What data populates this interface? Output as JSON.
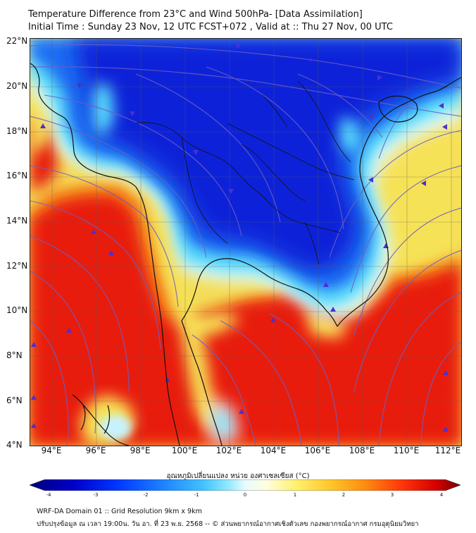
{
  "header": {
    "title_line1": "Temperature Difference from 23°C and Wind 500hPa- [Data Assimilation]",
    "title_line2": "Initial Time : Sunday 23 Nov, 12 UTC FCST+072 , Valid at ::  Thu 27 Nov, 00 UTC"
  },
  "map": {
    "lat_labels": [
      "22°N",
      "20°N",
      "18°N",
      "16°N",
      "14°N",
      "12°N",
      "10°N",
      "8°N",
      "6°N",
      "4°N"
    ],
    "lon_labels": [
      "94°E",
      "96°E",
      "98°E",
      "100°E",
      "102°E",
      "104°E",
      "106°E",
      "108°E",
      "110°E",
      "112°E"
    ],
    "lat_range": [
      4,
      22
    ],
    "lon_range": [
      93,
      112.5
    ],
    "field": "temperature difference from 23°C",
    "overlay": "500hPa wind streamlines",
    "colors": {
      "cold_core": "#0a22d8",
      "cool": "#1e6cf2",
      "cyan": "#58dcfb",
      "pale": "#e6f8f0",
      "yellow": "#f6e257",
      "orange": "#f58a1c",
      "red": "#ea1f12",
      "streamline": "#6d5fc4",
      "coastline": "#111111"
    }
  },
  "colorbar": {
    "title": "อุณหภูมิเปลี่ยนแปลง หน่วย องศาเซลเซียส (°C)",
    "ticks": [
      "-4",
      "-3",
      "-2",
      "-1",
      "0",
      "1",
      "2",
      "3",
      "4"
    ],
    "colors": [
      "#00007a",
      "#0000c8",
      "#0033ff",
      "#1a7cff",
      "#3fc0ff",
      "#8fe8ff",
      "#e8fbff",
      "#fffde0",
      "#fff06a",
      "#ffc52a",
      "#ff8a10",
      "#ff3a0a",
      "#d80000",
      "#780000"
    ]
  },
  "footer": {
    "line1": "WRF-DA Domain 01 :: Grid Resolution 9km x 9km",
    "line2": "ปรับปรุงข้อมูล ณ เวลา 19:00น. วัน อา. ที่ 23 พ.ย. 2568 -- © ส่วนพยากรณ์อากาศเชิงตัวเลข กองพยากรณ์อากาศ กรมอุตุนิยมวิทยา"
  }
}
